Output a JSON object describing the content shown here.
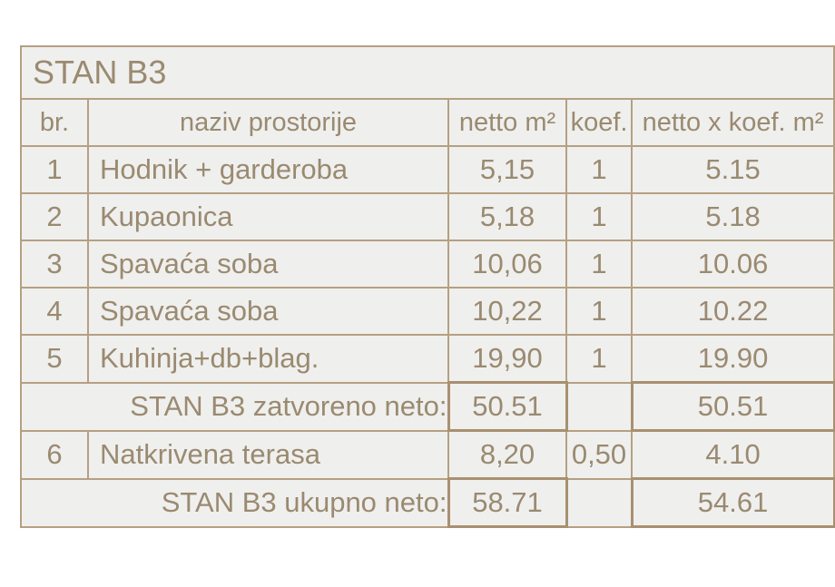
{
  "title": "STAN B3",
  "headers": {
    "no": "br.",
    "name": "naziv prostorije",
    "netto": "netto m²",
    "koef": "koef.",
    "result": "netto x koef. m²"
  },
  "rows": [
    {
      "no": "1",
      "name": "Hodnik + garderoba",
      "netto": "5,15",
      "koef": "1",
      "result": "5.15"
    },
    {
      "no": "2",
      "name": "Kupaonica",
      "netto": "5,18",
      "koef": "1",
      "result": "5.18"
    },
    {
      "no": "3",
      "name": "Spavaća soba",
      "netto": "10,06",
      "koef": "1",
      "result": "10.06"
    },
    {
      "no": "4",
      "name": "Spavaća soba",
      "netto": "10,22",
      "koef": "1",
      "result": "10.22"
    },
    {
      "no": "5",
      "name": "Kuhinja+db+blag.",
      "netto": "19,90",
      "koef": "1",
      "result": "19.90"
    }
  ],
  "subtotal": {
    "label": "STAN B3 zatvoreno neto:",
    "netto": "50.51",
    "result": "50.51"
  },
  "row6": {
    "no": "6",
    "name": "Natkrivena terasa",
    "netto": "8,20",
    "koef": "0,50",
    "result": "4.10"
  },
  "total": {
    "label": "STAN B3 ukupno neto:",
    "netto": "58.71",
    "result": "54.61"
  }
}
